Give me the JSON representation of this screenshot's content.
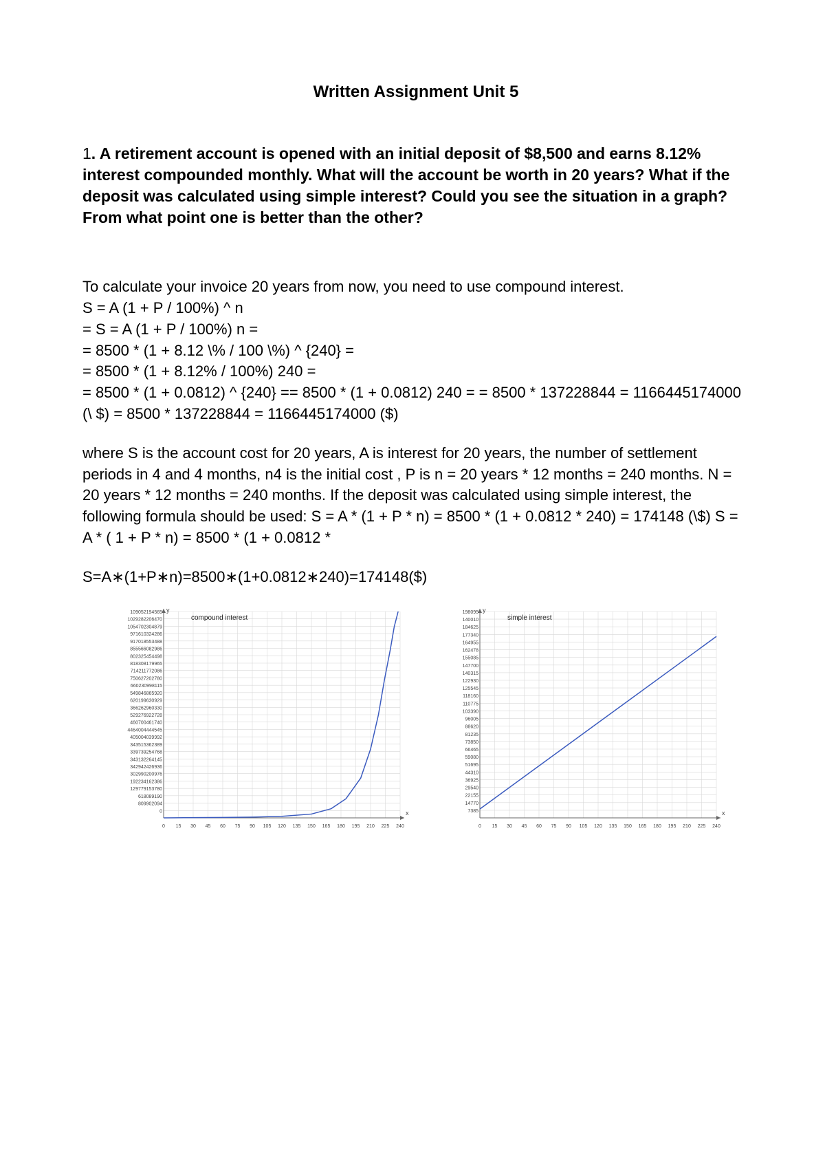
{
  "doc": {
    "title": "Written Assignment Unit 5",
    "question_number": "1",
    "question": ". A retirement account is opened with an initial deposit of $8,500 and earns 8.12% interest compounded monthly. What will the account be worth in 20 years? What if the deposit was calculated using simple interest? Could you see the situation in a graph? From what point one is better than the other?",
    "intro": "To calculate your invoice 20 years from now, you need to use compound interest.",
    "calc_lines": [
      " S = A (1 + P / 100%) ^ n",
      "= S = A (1 + P / 100%) n =",
      "= 8500 * (1 + 8.12 \\% / 100 \\%) ^ {240} =",
      "= 8500 * (1 + 8.12% / 100%) 240 =",
      "= 8500 * (1 + 0.0812) ^ {240} == 8500 * (1 + 0.0812) 240 = = 8500 * 137228844 = 1166445174000 (\\ $) = 8500 * 137228844 = 1166445174000 ($)"
    ],
    "paragraph": "where S is the account cost for 20 years, A is interest for 20 years, the number of settlement periods in 4 and 4 months, n4 is the initial cost , P is n = 20 years * 12 months = 240 months. N = 20 years * 12 months = 240 months. If the deposit was calculated using simple interest, the following formula should be used: S = A * (1 + P * n) = 8500 * (1 + 0.0812 * 240) = 174148 (\\$) S = A * ( 1 + P * n) = 8500 * (1 + 0.0812 *",
    "simple_formula": "S=A∗(1+P∗n)=8500∗(1+0.0812∗240)=174148($)"
  },
  "charts": {
    "compound": {
      "title": "compound interest",
      "line_color": "#3b5bbf",
      "grid_color": "#d8d8d8",
      "axis_color": "#666666",
      "text_color": "#444444",
      "background": "#ffffff",
      "tick_fontsize": 7,
      "title_fontsize": 10,
      "x_ticks": [
        0,
        15,
        30,
        45,
        60,
        75,
        90,
        105,
        120,
        135,
        150,
        165,
        180,
        195,
        210,
        225,
        240
      ],
      "y_labels": [
        "109052194565",
        "1029282206470",
        "1054702304879",
        "971610324286",
        "917018553488",
        "855566082986",
        "802325454498",
        "818308179965",
        "714211772086",
        "750627202780",
        "660230998115",
        "549846865920",
        "620199630929",
        "366262960330",
        "529276922728",
        "460700461740",
        "4464004444545",
        "405004039992",
        "343515362389",
        "339739254768",
        "343132264145",
        "342942426936",
        "302990200976",
        "192234162386",
        "129779153780",
        "618089190",
        "809902094",
        "0"
      ],
      "xlim": [
        0,
        240
      ],
      "ylim": [
        0,
        27
      ],
      "curve": [
        [
          0,
          0.0
        ],
        [
          30,
          0.03
        ],
        [
          60,
          0.06
        ],
        [
          90,
          0.1
        ],
        [
          120,
          0.2
        ],
        [
          150,
          0.5
        ],
        [
          170,
          1.2
        ],
        [
          185,
          2.5
        ],
        [
          200,
          5.2
        ],
        [
          210,
          9.0
        ],
        [
          218,
          13.5
        ],
        [
          224,
          18.0
        ],
        [
          230,
          22.0
        ],
        [
          234,
          25.0
        ],
        [
          237,
          26.5
        ],
        [
          238,
          27.0
        ]
      ]
    },
    "simple": {
      "title": "simple interest",
      "line_color": "#3b5bbf",
      "grid_color": "#d8d8d8",
      "axis_color": "#666666",
      "text_color": "#444444",
      "background": "#ffffff",
      "tick_fontsize": 7,
      "title_fontsize": 10,
      "x_ticks": [
        0,
        15,
        30,
        45,
        60,
        75,
        90,
        105,
        120,
        135,
        150,
        165,
        180,
        195,
        210,
        225,
        240
      ],
      "y_labels": [
        "198095",
        "140010",
        "184625",
        "177340",
        "164955",
        "162478",
        "155085",
        "147700",
        "140315",
        "122930",
        "125545",
        "118160",
        "110775",
        "103390",
        "96005",
        "88620",
        "81235",
        "73850",
        "66465",
        "59080",
        "51695",
        "44310",
        "36925",
        "29540",
        "22155",
        "14770",
        "7385"
      ],
      "xlim": [
        0,
        240
      ],
      "ylim": [
        0,
        198095
      ],
      "line_start": [
        0,
        8500
      ],
      "line_end": [
        240,
        174148
      ]
    }
  }
}
